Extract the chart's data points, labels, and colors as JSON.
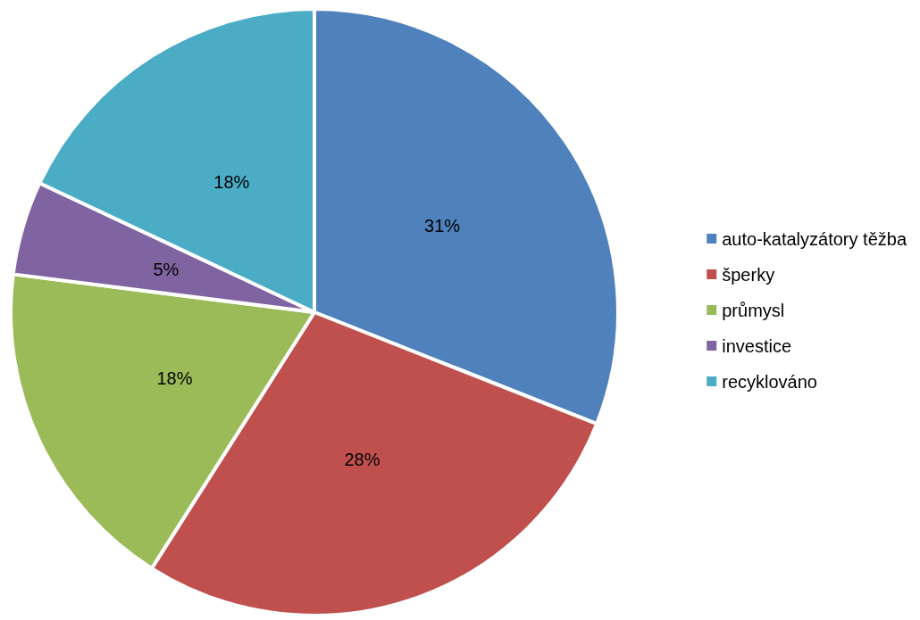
{
  "chart_data": {
    "type": "pie",
    "categories": [
      "auto-katalyzátory těžba",
      "šperky",
      "průmysl",
      "investice",
      "recyklováno"
    ],
    "values": [
      31,
      28,
      18,
      5,
      18
    ],
    "colors": [
      "#4f81bd",
      "#c0504d",
      "#9bbb59",
      "#8064a2",
      "#4bacc6"
    ],
    "value_labels": [
      "31%",
      "28%",
      "18%",
      "5%",
      "18%"
    ],
    "legend": "right"
  }
}
